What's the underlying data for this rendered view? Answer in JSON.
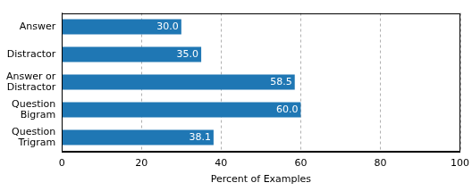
{
  "chart_data": {
    "type": "bar",
    "orientation": "horizontal",
    "categories": [
      "Answer",
      "Distractor",
      "Answer or Distractor",
      "Question Bigram",
      "Question Trigram"
    ],
    "values": [
      30.0,
      35.0,
      58.5,
      60.0,
      38.1
    ],
    "value_labels": [
      "30.0",
      "35.0",
      "58.5",
      "60.0",
      "38.1"
    ],
    "color": "#1f77b4",
    "x_label": "Percent of Examples",
    "xlim": [
      0,
      100
    ],
    "xticks": [
      0,
      20,
      40,
      60,
      80,
      100
    ],
    "grid": true,
    "data_labels": true
  }
}
